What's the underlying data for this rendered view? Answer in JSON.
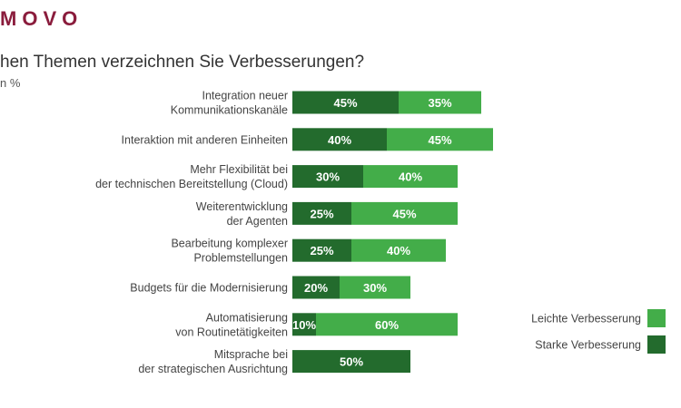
{
  "header": {
    "logo_text": "MOVO",
    "title": "hen Themen verzeichnen Sie Verbesserungen?",
    "subtitle": "n %"
  },
  "colors": {
    "brand": "#8a1c3c",
    "strong": "#236b2d",
    "light": "#43ad49"
  },
  "chart_data": {
    "type": "bar",
    "orientation": "horizontal",
    "stacked": true,
    "title": "hen Themen verzeichnen Sie Verbesserungen?",
    "categories": [
      [
        "Integration neuer",
        "Kommunikationskanäle"
      ],
      [
        "Interaktion mit anderen Einheiten"
      ],
      [
        "Mehr Flexibilität bei",
        "der technischen Bereitstellung (Cloud)"
      ],
      [
        "Weiterentwicklung",
        "der Agenten"
      ],
      [
        "Bearbeitung komplexer",
        "Problemstellungen"
      ],
      [
        "Budgets für die Modernisierung"
      ],
      [
        "Automatisierung",
        "von Routinetätigkeiten"
      ],
      [
        "Mitsprache bei",
        "der strategischen Ausrichtung"
      ]
    ],
    "series": [
      {
        "name": "Starke Verbesserung",
        "color": "#236b2d",
        "values": [
          45,
          40,
          30,
          25,
          25,
          20,
          10,
          50
        ]
      },
      {
        "name": "Leichte Verbesserung",
        "color": "#43ad49",
        "values": [
          35,
          45,
          40,
          45,
          40,
          30,
          60,
          null
        ]
      }
    ],
    "value_suffix": "%",
    "xlim": [
      0,
      100
    ],
    "grid": false,
    "legend": {
      "placement": "right",
      "order": [
        "Leichte Verbesserung",
        "Starke Verbesserung"
      ]
    }
  }
}
